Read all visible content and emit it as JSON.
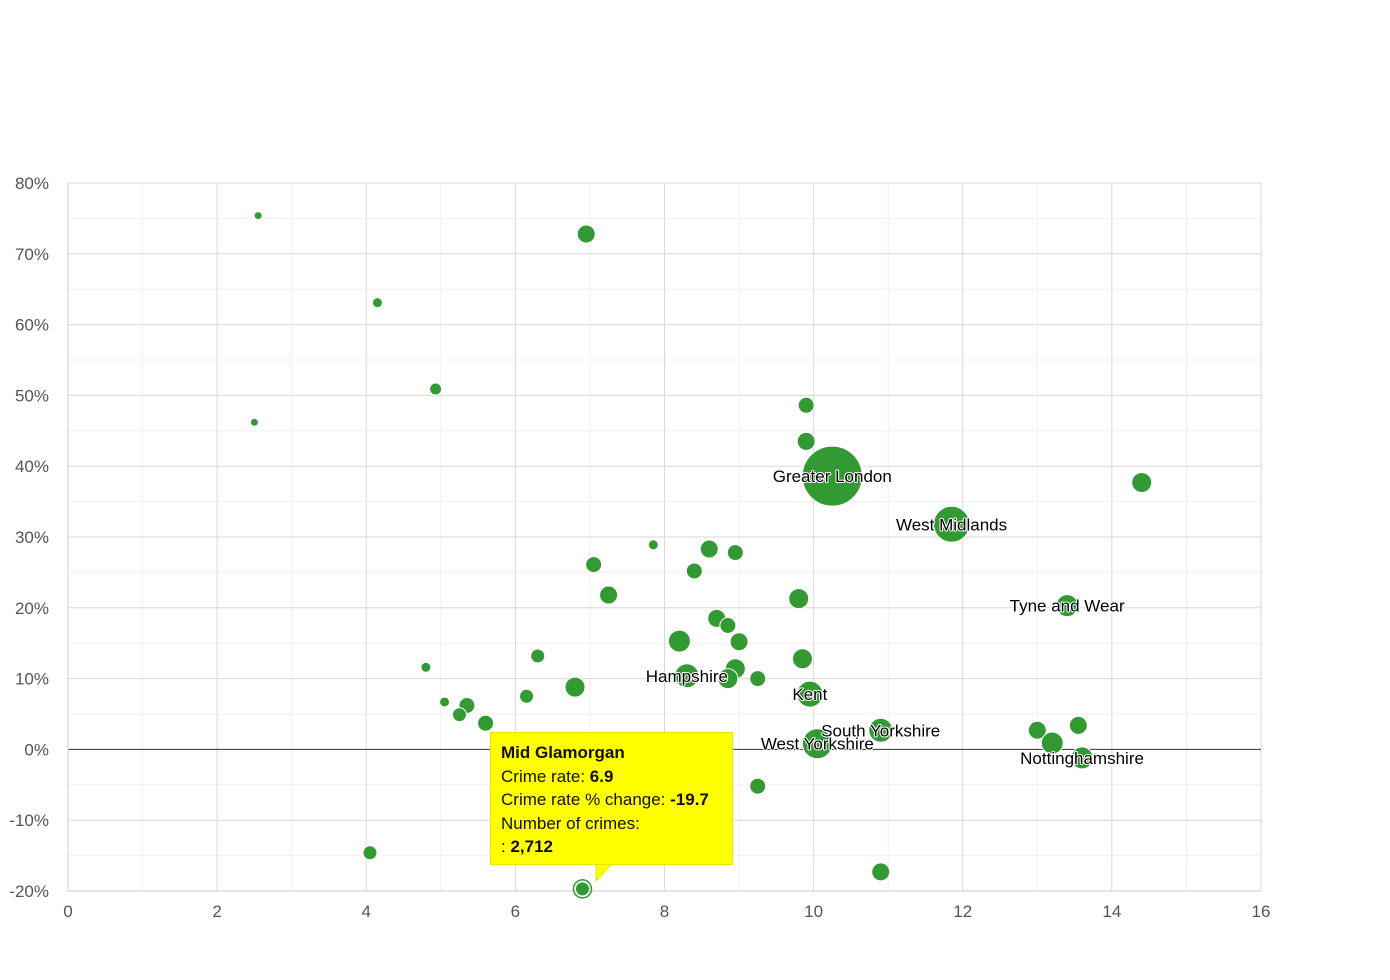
{
  "chart_data": {
    "type": "scatter",
    "title": "",
    "xlabel": "",
    "ylabel": "",
    "xlim": [
      0,
      16
    ],
    "ylim": [
      -20,
      80
    ],
    "x_ticks": [
      0,
      2,
      4,
      6,
      8,
      10,
      12,
      14,
      16
    ],
    "y_ticks": [
      -20,
      -10,
      0,
      10,
      20,
      30,
      40,
      50,
      60,
      70,
      80
    ],
    "y_tick_suffix": "%",
    "bubble_color": "#339933",
    "points": [
      {
        "x": 2.55,
        "y": 75.4,
        "size": 4,
        "label": ""
      },
      {
        "x": 6.95,
        "y": 72.8,
        "size": 9,
        "label": ""
      },
      {
        "x": 4.15,
        "y": 63.1,
        "size": 5,
        "label": ""
      },
      {
        "x": 4.93,
        "y": 50.9,
        "size": 6,
        "label": ""
      },
      {
        "x": 2.5,
        "y": 46.2,
        "size": 4,
        "label": ""
      },
      {
        "x": 9.9,
        "y": 48.6,
        "size": 8,
        "label": ""
      },
      {
        "x": 9.9,
        "y": 43.5,
        "size": 9,
        "label": ""
      },
      {
        "x": 10.25,
        "y": 38.6,
        "size": 30,
        "label": "Greater London"
      },
      {
        "x": 14.4,
        "y": 37.7,
        "size": 10,
        "label": ""
      },
      {
        "x": 11.85,
        "y": 31.8,
        "size": 18,
        "label": "West Midlands"
      },
      {
        "x": 7.85,
        "y": 28.9,
        "size": 5,
        "label": ""
      },
      {
        "x": 8.6,
        "y": 28.3,
        "size": 9,
        "label": ""
      },
      {
        "x": 8.95,
        "y": 27.8,
        "size": 8,
        "label": ""
      },
      {
        "x": 7.05,
        "y": 26.1,
        "size": 8,
        "label": ""
      },
      {
        "x": 8.4,
        "y": 25.2,
        "size": 8,
        "label": ""
      },
      {
        "x": 7.25,
        "y": 21.8,
        "size": 9,
        "label": ""
      },
      {
        "x": 9.8,
        "y": 21.3,
        "size": 10,
        "label": ""
      },
      {
        "x": 13.4,
        "y": 20.3,
        "size": 11,
        "label": "Tyne and Wear"
      },
      {
        "x": 8.7,
        "y": 18.5,
        "size": 9,
        "label": ""
      },
      {
        "x": 8.85,
        "y": 17.5,
        "size": 8,
        "label": ""
      },
      {
        "x": 8.2,
        "y": 15.3,
        "size": 11,
        "label": ""
      },
      {
        "x": 9.0,
        "y": 15.2,
        "size": 9,
        "label": ""
      },
      {
        "x": 6.3,
        "y": 13.2,
        "size": 7,
        "label": ""
      },
      {
        "x": 9.85,
        "y": 12.8,
        "size": 10,
        "label": ""
      },
      {
        "x": 4.8,
        "y": 11.6,
        "size": 5,
        "label": ""
      },
      {
        "x": 8.95,
        "y": 11.4,
        "size": 10,
        "label": ""
      },
      {
        "x": 8.3,
        "y": 10.4,
        "size": 12,
        "label": "Hampshire"
      },
      {
        "x": 8.85,
        "y": 10.0,
        "size": 10,
        "label": ""
      },
      {
        "x": 9.25,
        "y": 10.0,
        "size": 8,
        "label": ""
      },
      {
        "x": 6.8,
        "y": 8.8,
        "size": 10,
        "label": ""
      },
      {
        "x": 9.95,
        "y": 7.8,
        "size": 13,
        "label": "Kent"
      },
      {
        "x": 6.15,
        "y": 7.5,
        "size": 7,
        "label": ""
      },
      {
        "x": 5.05,
        "y": 6.7,
        "size": 5,
        "label": ""
      },
      {
        "x": 5.35,
        "y": 6.2,
        "size": 8,
        "label": ""
      },
      {
        "x": 5.25,
        "y": 4.9,
        "size": 7,
        "label": ""
      },
      {
        "x": 5.6,
        "y": 3.7,
        "size": 8,
        "label": ""
      },
      {
        "x": 13.55,
        "y": 3.4,
        "size": 9,
        "label": ""
      },
      {
        "x": 10.9,
        "y": 2.7,
        "size": 12,
        "label": "South Yorkshire"
      },
      {
        "x": 13.0,
        "y": 2.7,
        "size": 9,
        "label": ""
      },
      {
        "x": 13.2,
        "y": 0.9,
        "size": 11,
        "label": ""
      },
      {
        "x": 10.05,
        "y": 0.8,
        "size": 15,
        "label": "West Yorkshire"
      },
      {
        "x": 13.6,
        "y": -1.2,
        "size": 11,
        "label": "Nottinghamshire"
      },
      {
        "x": 9.25,
        "y": -5.2,
        "size": 8,
        "label": ""
      },
      {
        "x": 4.05,
        "y": -14.6,
        "size": 7,
        "label": ""
      },
      {
        "x": 10.9,
        "y": -17.3,
        "size": 9,
        "label": ""
      },
      {
        "x": 6.9,
        "y": -19.7,
        "size": 7,
        "label": "",
        "highlighted": true
      }
    ]
  },
  "tooltip": {
    "title": "Mid Glamorgan",
    "crime_rate_label": "Crime rate: ",
    "crime_rate_value": "6.9",
    "pct_change_label": "Crime rate % change: ",
    "pct_change_value": "-19.7",
    "num_crimes_label": "Number of crimes:",
    "num_crimes_prefix": ": ",
    "num_crimes_value": "2,712",
    "background": "#ffff00"
  }
}
